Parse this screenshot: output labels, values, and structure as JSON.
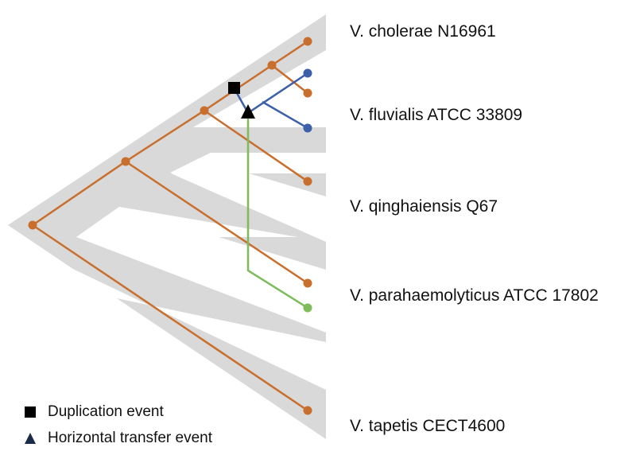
{
  "species": [
    {
      "id": "cholerae",
      "label": "V. cholerae N16961"
    },
    {
      "id": "fluvialis",
      "label": "V. fluvialis ATCC 33809"
    },
    {
      "id": "qinghaiensis",
      "label": "V. qinghaiensis Q67"
    },
    {
      "id": "parahaemolyticus",
      "label": "V. parahaemolyticus ATCC 17802"
    },
    {
      "id": "tapetis",
      "label": "V. tapetis CECT4600"
    }
  ],
  "legend": {
    "duplication": {
      "label": "Duplication event",
      "marker": "square-icon"
    },
    "transfer": {
      "label": "Horizontal transfer event",
      "marker": "triangle-icon"
    }
  },
  "colors": {
    "species_tree": "#d9d9d9",
    "gene_tree_orange": "#c96f2e",
    "gene_tree_blue": "#3b5fa8",
    "gene_tree_green": "#7dbb5b",
    "event_marker": "#000000"
  }
}
